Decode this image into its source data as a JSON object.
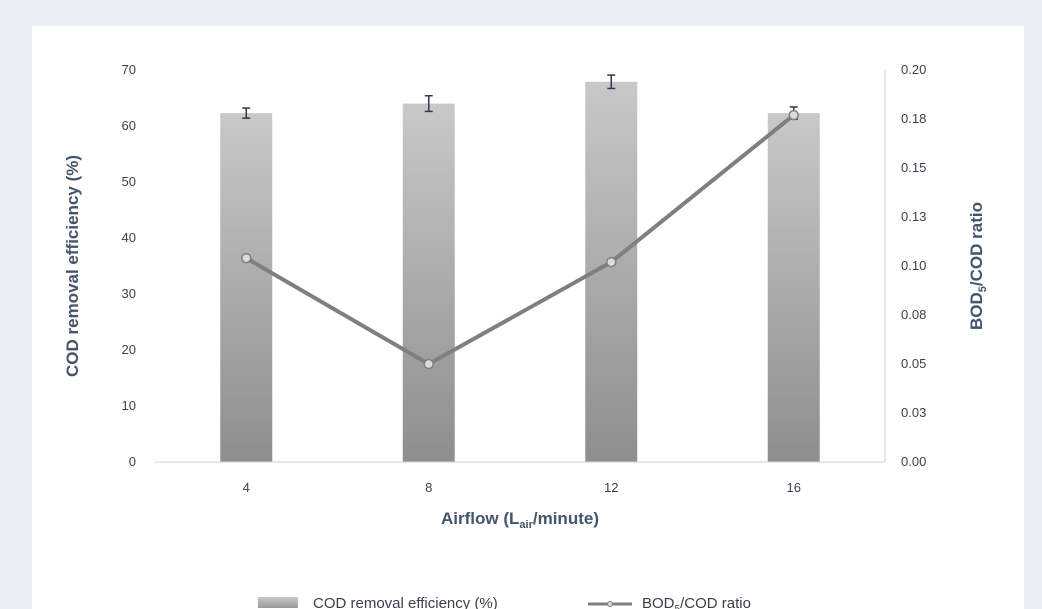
{
  "chart_data": {
    "type": "bar+line",
    "categories": [
      "4",
      "8",
      "12",
      "16"
    ],
    "x_axis": {
      "label_main": "Airflow (L",
      "label_sub": "air",
      "label_end": "/minute)"
    },
    "y_left": {
      "label": "COD removal efficiency (%)",
      "range": [
        0,
        70
      ],
      "ticks": [
        "0",
        "10",
        "20",
        "30",
        "40",
        "50",
        "60",
        "70"
      ]
    },
    "y_right": {
      "label_main": "BOD",
      "label_sub": "5",
      "label_end": "/COD ratio",
      "range": [
        0,
        0.2
      ],
      "ticks": [
        "0.00",
        "0.03",
        "0.05",
        "0.08",
        "0.10",
        "0.13",
        "0.15",
        "0.18",
        "0.20"
      ]
    },
    "series": [
      {
        "name": "COD removal efficiency (%)",
        "type": "bar",
        "axis": "left",
        "values": [
          62.3,
          64.0,
          67.9,
          62.3
        ],
        "errors": [
          0.9,
          1.4,
          1.2,
          1.1
        ],
        "color": "#a6a6a6"
      },
      {
        "name_main": "BOD",
        "name_sub": "5",
        "name_end": "/COD ratio",
        "type": "line",
        "axis": "right",
        "values": [
          0.104,
          0.05,
          0.102,
          0.177
        ],
        "color": "#7f7f7f"
      }
    ],
    "grid": false,
    "legend_position": "bottom"
  }
}
